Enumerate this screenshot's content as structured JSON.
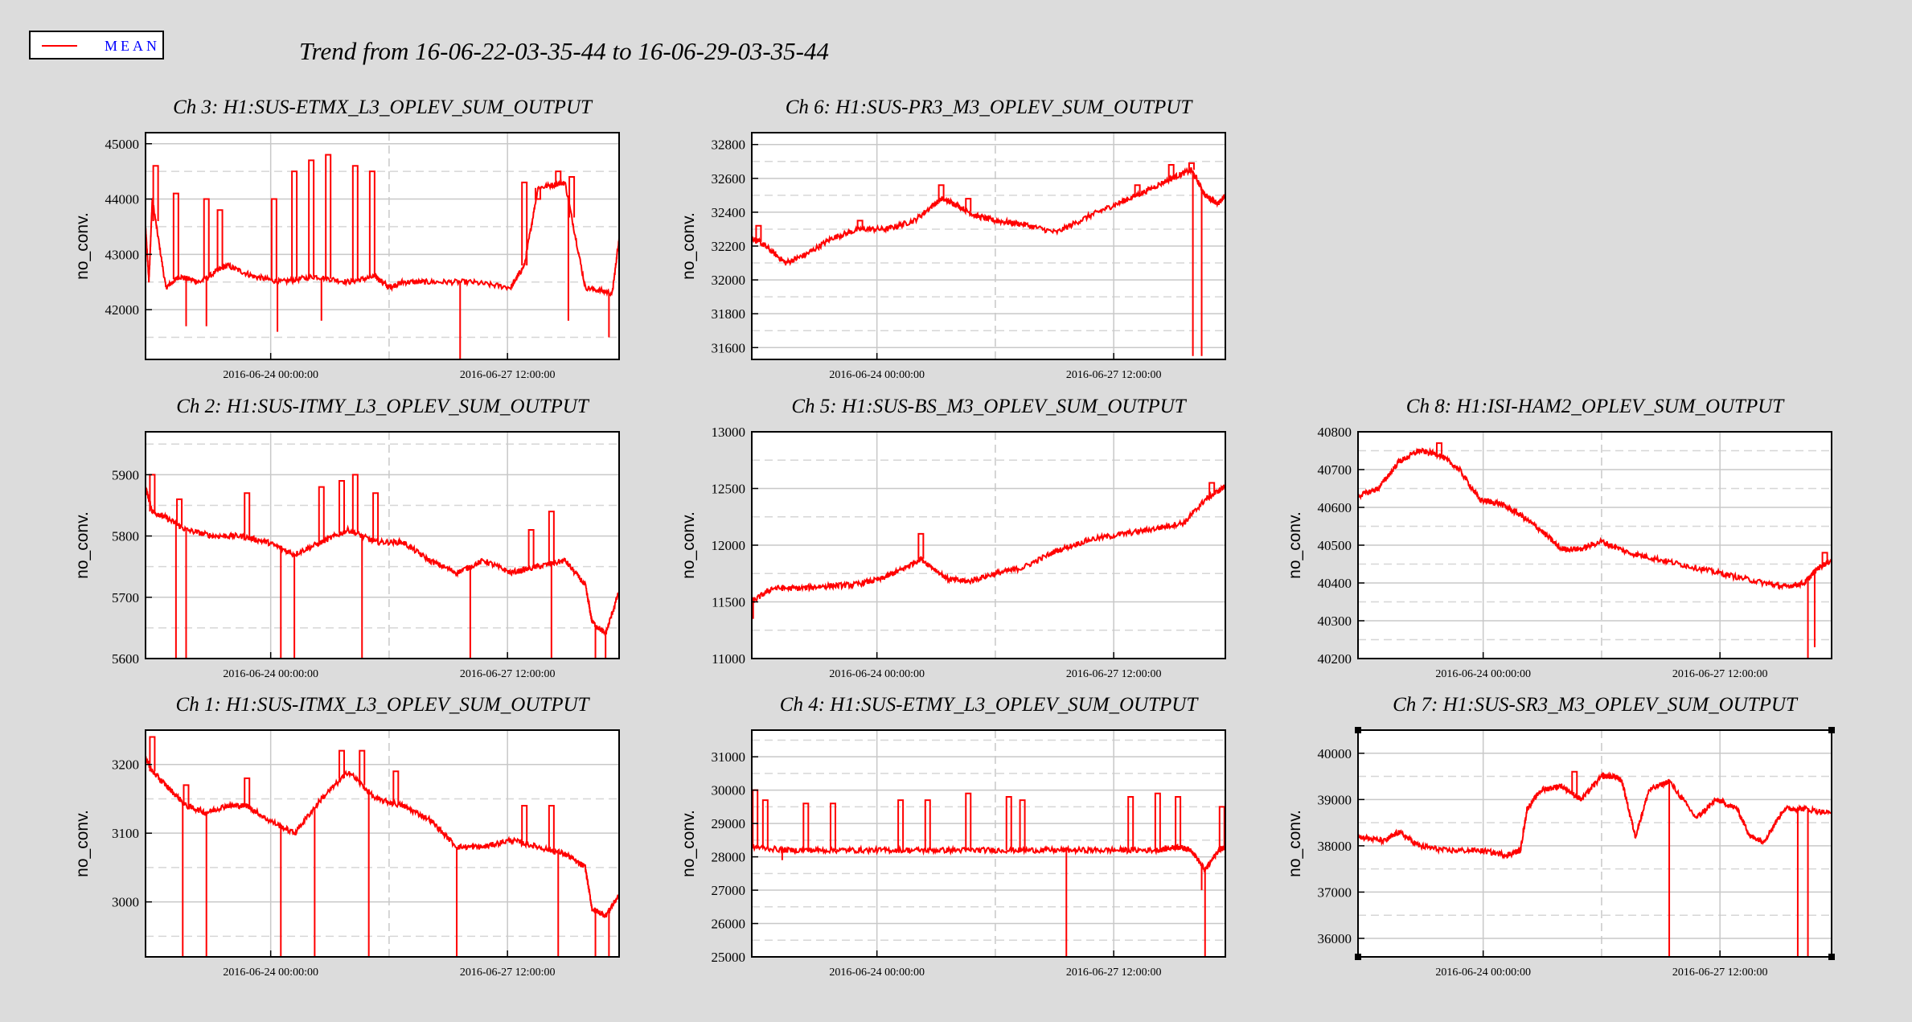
{
  "legend": {
    "label": "MEAN",
    "color": "#ff0000"
  },
  "main_title": "Trend from 16-06-22-03-35-44 to 16-06-29-03-35-44",
  "chart_data": [
    {
      "type": "line",
      "title": "Ch 3: H1:SUS-ETMX_L3_OPLEV_SUM_OUTPUT",
      "ylabel": "no_conv.",
      "ylim": [
        41100,
        45200
      ],
      "yticks": [
        42000,
        43000,
        44000,
        45000
      ],
      "xticks": [
        "2016-06-24 00:00:00",
        "2016-06-27 12:00:00"
      ],
      "xtick_days": [
        1.85,
        5.35
      ],
      "xlim": [
        0,
        7
      ],
      "series": [
        {
          "x": [
            0,
            0.05,
            0.1,
            0.3,
            0.5,
            0.8,
            1.2,
            1.6,
            2,
            2.5,
            3,
            3.4,
            3.6,
            3.8,
            4.2,
            4.8,
            5.4,
            5.6,
            5.8,
            6.2,
            6.5,
            6.9,
            7
          ],
          "y": [
            43500,
            42500,
            44000,
            42400,
            42600,
            42500,
            42800,
            42600,
            42500,
            42600,
            42500,
            42600,
            42400,
            42500,
            42500,
            42500,
            42400,
            42800,
            44200,
            44300,
            42400,
            42300,
            43300
          ]
        }
      ],
      "spikes": [
        [
          0.15,
          44600
        ],
        [
          0.45,
          44100
        ],
        [
          0.9,
          44000
        ],
        [
          1.1,
          43800
        ],
        [
          1.9,
          44000
        ],
        [
          2.2,
          44500
        ],
        [
          2.45,
          44700
        ],
        [
          2.7,
          44800
        ],
        [
          3.1,
          44600
        ],
        [
          3.35,
          44500
        ],
        [
          5.6,
          44300
        ],
        [
          5.8,
          44000
        ],
        [
          6.1,
          44500
        ],
        [
          6.3,
          44400
        ]
      ],
      "dips": [
        [
          0.6,
          41700
        ],
        [
          0.9,
          41700
        ],
        [
          1.95,
          41600
        ],
        [
          2.6,
          41800
        ],
        [
          4.65,
          41100
        ],
        [
          6.25,
          41800
        ],
        [
          6.85,
          41500
        ]
      ]
    },
    {
      "type": "line",
      "title": "Ch 6: H1:SUS-PR3_M3_OPLEV_SUM_OUTPUT",
      "ylabel": "no_conv.",
      "ylim": [
        31530,
        32870
      ],
      "yticks": [
        31600,
        31800,
        32000,
        32200,
        32400,
        32600,
        32800
      ],
      "xticks": [
        "2016-06-24 00:00:00",
        "2016-06-27 12:00:00"
      ],
      "xtick_days": [
        1.85,
        5.35
      ],
      "xlim": [
        0,
        7
      ],
      "series": [
        {
          "x": [
            0,
            0.2,
            0.5,
            0.8,
            1.2,
            1.6,
            2,
            2.4,
            2.8,
            3,
            3.3,
            3.6,
            4,
            4.5,
            5,
            5.4,
            5.8,
            6.2,
            6.5,
            6.7,
            6.9,
            7
          ],
          "y": [
            32250,
            32200,
            32100,
            32150,
            32250,
            32300,
            32300,
            32350,
            32480,
            32450,
            32380,
            32350,
            32330,
            32280,
            32380,
            32450,
            32520,
            32600,
            32650,
            32500,
            32450,
            32500
          ]
        }
      ],
      "spikes": [
        [
          0.1,
          32320
        ],
        [
          1.6,
          32350
        ],
        [
          2.8,
          32560
        ],
        [
          3.2,
          32480
        ],
        [
          5.7,
          32560
        ],
        [
          6.2,
          32680
        ],
        [
          6.5,
          32690
        ]
      ],
      "dips": [
        [
          6.52,
          31550
        ],
        [
          6.65,
          31550
        ]
      ]
    },
    {
      "type": "line",
      "title": "Ch 2: H1:SUS-ITMY_L3_OPLEV_SUM_OUTPUT",
      "ylabel": "no_conv.",
      "ylim": [
        5600,
        5970
      ],
      "yticks": [
        5600,
        5700,
        5800,
        5900
      ],
      "xticks": [
        "2016-06-24 00:00:00",
        "2016-06-27 12:00:00"
      ],
      "xtick_days": [
        1.85,
        5.35
      ],
      "xlim": [
        0,
        7
      ],
      "series": [
        {
          "x": [
            0,
            0.1,
            0.3,
            0.6,
            1,
            1.4,
            1.8,
            2.2,
            2.6,
            3,
            3.4,
            3.8,
            4.2,
            4.6,
            5,
            5.4,
            5.8,
            6.2,
            6.5,
            6.6,
            6.8,
            7
          ],
          "y": [
            5880,
            5840,
            5830,
            5810,
            5800,
            5800,
            5790,
            5770,
            5790,
            5810,
            5790,
            5790,
            5760,
            5740,
            5760,
            5740,
            5750,
            5760,
            5720,
            5660,
            5640,
            5710
          ]
        }
      ],
      "spikes": [
        [
          0.1,
          5900
        ],
        [
          0.5,
          5860
        ],
        [
          1.5,
          5870
        ],
        [
          2.6,
          5880
        ],
        [
          2.9,
          5890
        ],
        [
          3.1,
          5900
        ],
        [
          3.4,
          5870
        ],
        [
          5.7,
          5810
        ],
        [
          6.0,
          5840
        ]
      ],
      "dips": [
        [
          0.45,
          5600
        ],
        [
          0.6,
          5600
        ],
        [
          2.0,
          5600
        ],
        [
          2.2,
          5600
        ],
        [
          3.2,
          5600
        ],
        [
          4.8,
          5600
        ],
        [
          6.0,
          5600
        ],
        [
          6.65,
          5600
        ],
        [
          6.8,
          5600
        ]
      ]
    },
    {
      "type": "line",
      "title": "Ch 5: H1:SUS-BS_M3_OPLEV_SUM_OUTPUT",
      "ylabel": "no_conv.",
      "ylim": [
        11000,
        13000
      ],
      "yticks": [
        11000,
        11500,
        12000,
        12500,
        13000
      ],
      "xticks": [
        "2016-06-24 00:00:00",
        "2016-06-27 12:00:00"
      ],
      "xtick_days": [
        1.85,
        5.35
      ],
      "xlim": [
        0,
        7
      ],
      "series": [
        {
          "x": [
            0,
            0.3,
            0.7,
            1.1,
            1.5,
            1.9,
            2.2,
            2.5,
            2.9,
            3.2,
            3.6,
            4,
            4.5,
            5,
            5.5,
            6,
            6.4,
            6.7,
            7
          ],
          "y": [
            11500,
            11620,
            11620,
            11640,
            11650,
            11700,
            11780,
            11880,
            11700,
            11680,
            11750,
            11800,
            11950,
            12050,
            12100,
            12150,
            12200,
            12400,
            12520
          ]
        }
      ],
      "spikes": [
        [
          2.5,
          12100
        ],
        [
          6.8,
          12550
        ]
      ],
      "dips": [
        [
          0.02,
          11350
        ]
      ]
    },
    {
      "type": "line",
      "title": "Ch 8: H1:ISI-HAM2_OPLEV_SUM_OUTPUT",
      "ylabel": "no_conv.",
      "ylim": [
        40200,
        40800
      ],
      "yticks": [
        40200,
        40300,
        40400,
        40500,
        40600,
        40700,
        40800
      ],
      "xticks": [
        "2016-06-24 00:00:00",
        "2016-06-27 12:00:00"
      ],
      "xtick_days": [
        1.85,
        5.35
      ],
      "xlim": [
        0,
        7
      ],
      "series": [
        {
          "x": [
            0,
            0.3,
            0.6,
            0.9,
            1.2,
            1.5,
            1.8,
            2.1,
            2.4,
            2.7,
            3,
            3.3,
            3.6,
            4,
            4.5,
            5,
            5.5,
            6,
            6.3,
            6.6,
            6.8,
            7
          ],
          "y": [
            40630,
            40650,
            40720,
            40750,
            40740,
            40700,
            40620,
            40610,
            40580,
            40540,
            40490,
            40490,
            40510,
            40480,
            40460,
            40440,
            40420,
            40400,
            40390,
            40400,
            40440,
            40460
          ]
        }
      ],
      "spikes": [
        [
          1.2,
          40770
        ],
        [
          6.9,
          40480
        ]
      ],
      "dips": [
        [
          6.65,
          40200
        ],
        [
          6.75,
          40230
        ]
      ]
    },
    {
      "type": "line",
      "title": "Ch 1: H1:SUS-ITMX_L3_OPLEV_SUM_OUTPUT",
      "ylabel": "no_conv.",
      "ylim": [
        2920,
        3250
      ],
      "yticks": [
        3000,
        3100,
        3200
      ],
      "xticks": [
        "2016-06-24 00:00:00",
        "2016-06-27 12:00:00"
      ],
      "xtick_days": [
        1.85,
        5.35
      ],
      "xlim": [
        0,
        7
      ],
      "series": [
        {
          "x": [
            0,
            0.1,
            0.3,
            0.6,
            0.9,
            1.2,
            1.5,
            1.8,
            2.2,
            2.6,
            3,
            3.4,
            3.8,
            4.2,
            4.6,
            5,
            5.4,
            5.8,
            6.2,
            6.5,
            6.6,
            6.8,
            7
          ],
          "y": [
            3210,
            3190,
            3170,
            3140,
            3130,
            3140,
            3140,
            3120,
            3100,
            3150,
            3190,
            3150,
            3140,
            3120,
            3080,
            3080,
            3090,
            3080,
            3070,
            3050,
            2990,
            2980,
            3010
          ]
        }
      ],
      "spikes": [
        [
          0.1,
          3240
        ],
        [
          0.6,
          3170
        ],
        [
          1.5,
          3180
        ],
        [
          2.9,
          3220
        ],
        [
          3.2,
          3220
        ],
        [
          3.7,
          3190
        ],
        [
          5.6,
          3140
        ],
        [
          6.0,
          3140
        ]
      ],
      "dips": [
        [
          0.55,
          2920
        ],
        [
          0.9,
          2920
        ],
        [
          2.0,
          2920
        ],
        [
          2.5,
          2920
        ],
        [
          3.3,
          2920
        ],
        [
          4.6,
          2920
        ],
        [
          6.1,
          2920
        ],
        [
          6.65,
          2920
        ],
        [
          6.85,
          2920
        ]
      ]
    },
    {
      "type": "line",
      "title": "Ch 4: H1:SUS-ETMY_L3_OPLEV_SUM_OUTPUT",
      "ylabel": "no_conv.",
      "ylim": [
        25000,
        31800
      ],
      "yticks": [
        25000,
        26000,
        27000,
        28000,
        29000,
        30000,
        31000
      ],
      "xticks": [
        "2016-06-24 00:00:00",
        "2016-06-27 12:00:00"
      ],
      "xtick_days": [
        1.85,
        5.35
      ],
      "xlim": [
        0,
        7
      ],
      "series": [
        {
          "x": [
            0,
            0.5,
            1,
            1.5,
            2,
            2.5,
            3,
            3.5,
            4,
            4.5,
            5,
            5.5,
            6,
            6.3,
            6.5,
            6.7,
            6.9,
            7
          ],
          "y": [
            28300,
            28200,
            28200,
            28200,
            28200,
            28200,
            28200,
            28200,
            28200,
            28200,
            28200,
            28200,
            28200,
            28300,
            28200,
            27600,
            28200,
            28300
          ]
        }
      ],
      "spikes": [
        [
          0.05,
          30000
        ],
        [
          0.2,
          29700
        ],
        [
          0.8,
          29600
        ],
        [
          1.2,
          29600
        ],
        [
          2.2,
          29700
        ],
        [
          2.6,
          29700
        ],
        [
          3.2,
          29900
        ],
        [
          3.8,
          29800
        ],
        [
          4.0,
          29700
        ],
        [
          5.6,
          29800
        ],
        [
          6.0,
          29900
        ],
        [
          6.3,
          29800
        ],
        [
          6.95,
          29500
        ]
      ],
      "dips": [
        [
          0.45,
          27900
        ],
        [
          4.65,
          25000
        ],
        [
          6.65,
          27000
        ],
        [
          6.7,
          25000
        ]
      ]
    },
    {
      "type": "line",
      "title": "Ch 7: H1:SUS-SR3_M3_OPLEV_SUM_OUTPUT",
      "ylabel": "no_conv.",
      "ylim": [
        35600,
        40500
      ],
      "yticks": [
        36000,
        37000,
        38000,
        39000,
        40000
      ],
      "xticks": [
        "2016-06-24 00:00:00",
        "2016-06-27 12:00:00"
      ],
      "xtick_days": [
        1.85,
        5.35
      ],
      "xlim": [
        0,
        7
      ],
      "series": [
        {
          "x": [
            0,
            0.4,
            0.6,
            0.9,
            1.3,
            1.8,
            2.2,
            2.4,
            2.5,
            2.7,
            3,
            3.3,
            3.6,
            3.8,
            3.9,
            4.1,
            4.3,
            4.6,
            5,
            5.3,
            5.6,
            5.8,
            6,
            6.3,
            6.6,
            7
          ],
          "y": [
            38200,
            38100,
            38300,
            38000,
            37900,
            37900,
            37800,
            37900,
            38800,
            39200,
            39300,
            39000,
            39500,
            39500,
            39400,
            38200,
            39200,
            39400,
            38600,
            39000,
            38800,
            38200,
            38100,
            38800,
            38800,
            38700
          ]
        }
      ],
      "spikes": [
        [
          3.2,
          39600
        ]
      ],
      "dips": [
        [
          4.6,
          35600
        ],
        [
          6.5,
          35600
        ],
        [
          6.65,
          35600
        ]
      ]
    }
  ]
}
